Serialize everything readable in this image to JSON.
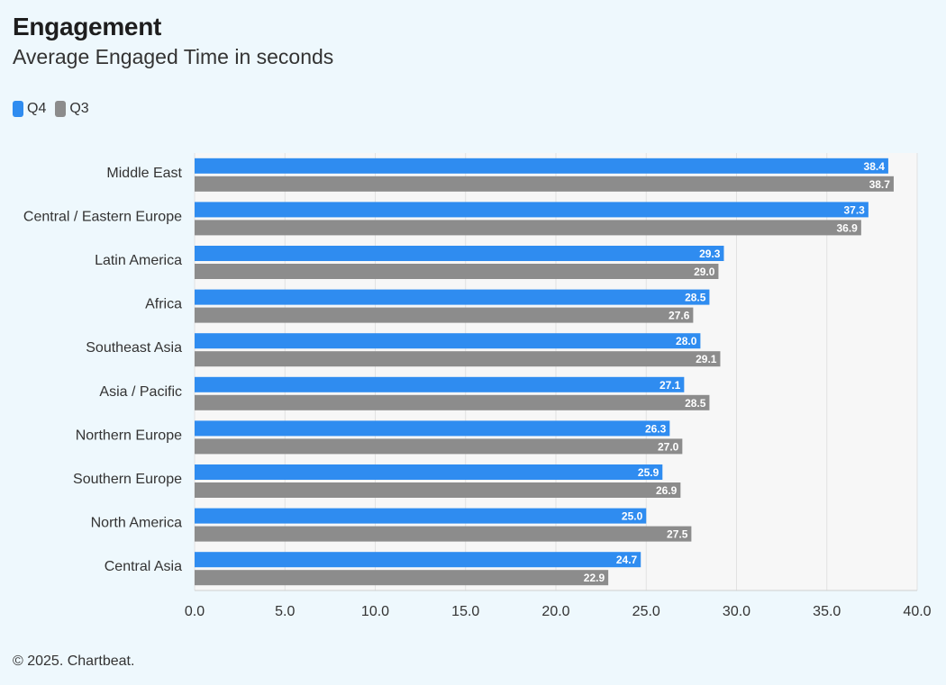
{
  "header": {
    "title": "Engagement",
    "subtitle": "Average Engaged Time in seconds"
  },
  "footer": {
    "text": "© 2025. Chartbeat."
  },
  "colors": {
    "q4": "#2f8cf0",
    "q3": "#8c8c8c",
    "background": "#eef8fd",
    "plot_background": "#f7f7f7",
    "grid": "#e2e2e2"
  },
  "chart_data": {
    "type": "bar",
    "orientation": "horizontal",
    "title": "Engagement",
    "subtitle": "Average Engaged Time in seconds",
    "categories": [
      "Middle East",
      "Central / Eastern Europe",
      "Latin America",
      "Africa",
      "Southeast Asia",
      "Asia / Pacific",
      "Northern Europe",
      "Southern Europe",
      "North America",
      "Central Asia"
    ],
    "series": [
      {
        "name": "Q4",
        "color": "#2f8cf0",
        "values": [
          38.4,
          37.3,
          29.3,
          28.5,
          28.0,
          27.1,
          26.3,
          25.9,
          25.0,
          24.7
        ]
      },
      {
        "name": "Q3",
        "color": "#8c8c8c",
        "values": [
          38.7,
          36.9,
          29.0,
          27.6,
          29.1,
          28.5,
          27.0,
          26.9,
          27.5,
          22.9
        ]
      }
    ],
    "xlim": [
      0,
      40
    ],
    "xticks": [
      "0.0",
      "5.0",
      "10.0",
      "15.0",
      "20.0",
      "25.0",
      "30.0",
      "35.0",
      "40.0"
    ],
    "grid": true,
    "legend_placement": "top-left",
    "data_labels": true
  }
}
